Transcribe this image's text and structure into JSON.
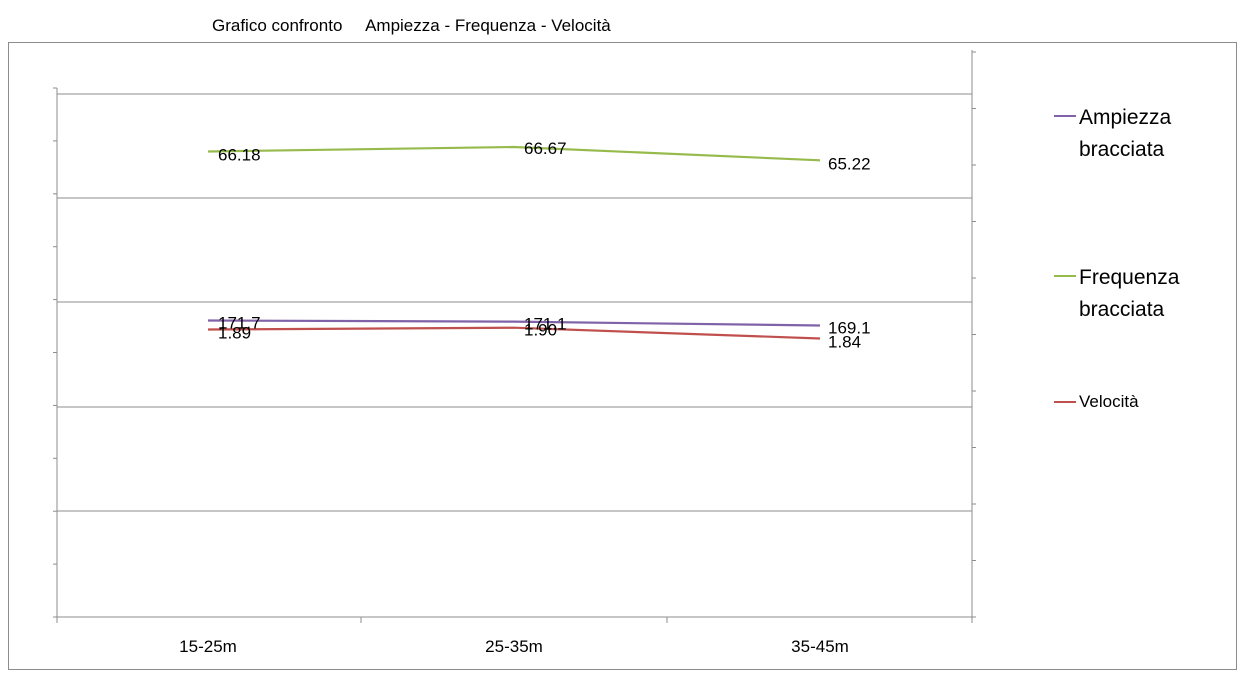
{
  "chart_data": {
    "type": "line",
    "title": "Grafico confronto     Ampiezza - Frequenza - Velocità",
    "categories": [
      "15-25m",
      "25-35m",
      "35-45m"
    ],
    "series": [
      {
        "name": "Ampiezza bracciata",
        "color": "#7f62a8",
        "values": [
          171.7,
          171.1,
          169.1
        ],
        "labels": [
          "171.7",
          "171.1",
          "169.1"
        ]
      },
      {
        "name": "Frequenza bracciata",
        "color": "#97ba4c",
        "values": [
          66.18,
          66.67,
          65.22
        ],
        "labels": [
          "66.18",
          "66.67",
          "65.22"
        ]
      },
      {
        "name": "Velocità",
        "color": "#c0504d",
        "values": [
          1.89,
          1.9,
          1.84
        ],
        "labels": [
          "1.89",
          "1.90",
          "1.84"
        ]
      }
    ],
    "grid": true,
    "legend_position": "right"
  }
}
